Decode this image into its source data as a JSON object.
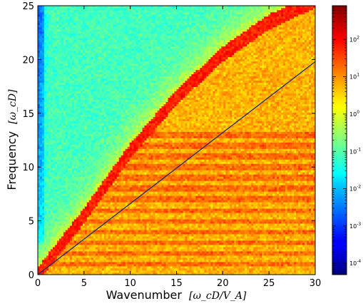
{
  "chart_data": {
    "type": "heatmap",
    "title": "",
    "xlabel": "Wavenumber",
    "xlabel_units": "[ω_cD/V_A]",
    "ylabel": "Frequency",
    "ylabel_units": "[ω_cD]",
    "xlim": [
      0,
      30
    ],
    "ylim": [
      0,
      25
    ],
    "x_ticks": [
      0,
      5,
      10,
      15,
      20,
      25,
      30
    ],
    "y_ticks": [
      0,
      5,
      10,
      15,
      20,
      25
    ],
    "x_tick_labels": [
      "0",
      "5",
      "10",
      "15",
      "20",
      "25",
      "30"
    ],
    "y_tick_labels": [
      "0",
      "5",
      "10",
      "15",
      "20",
      "25"
    ],
    "colormap": "jet",
    "color_scale": "log",
    "color_range": [
      5e-05,
      800
    ],
    "colorbar_ticks": [
      {
        "exp": 2,
        "label": "10",
        "sup": "2"
      },
      {
        "exp": 1,
        "label": "10",
        "sup": "1"
      },
      {
        "exp": 0,
        "label": "10",
        "sup": "0"
      },
      {
        "exp": -1,
        "label": "10",
        "sup": "-1"
      },
      {
        "exp": -2,
        "label": "10",
        "sup": "-2"
      },
      {
        "exp": -3,
        "label": "10",
        "sup": "-3"
      },
      {
        "exp": -4,
        "label": "10",
        "sup": "-4"
      }
    ],
    "overlay_line": {
      "x": [
        0,
        30
      ],
      "y": [
        0,
        19.8
      ],
      "color": "#1f2a6b"
    },
    "ridge_curve": {
      "description": "dispersion ridge",
      "x": [
        0,
        5,
        10,
        15,
        20,
        25,
        30
      ],
      "y": [
        0,
        5.5,
        11.5,
        16.5,
        20.5,
        23.5,
        25.5
      ]
    },
    "cyclotron_bands_y": [
      1,
      2,
      3,
      4,
      5,
      6,
      7,
      8,
      9,
      10,
      11,
      12,
      13
    ]
  }
}
